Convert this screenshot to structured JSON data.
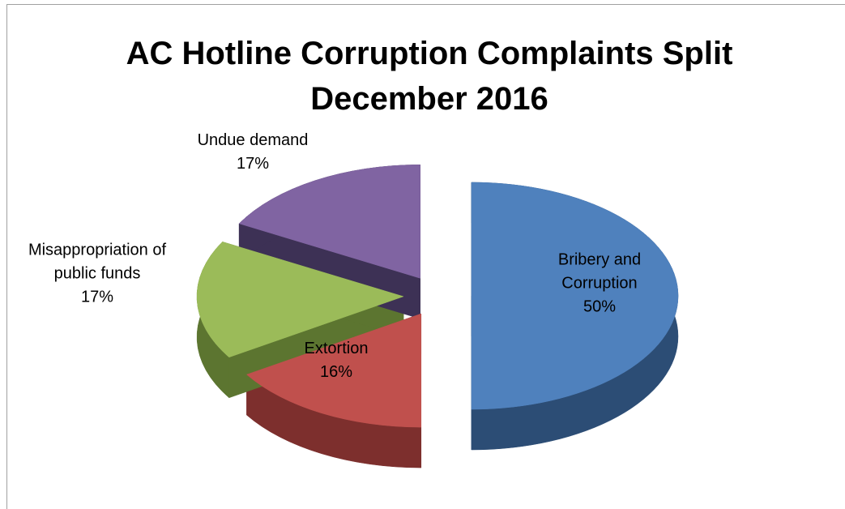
{
  "chart_data": {
    "type": "pie",
    "title": "AC Hotline Corruption Complaints Split December 2016",
    "categories": [
      "Bribery and Corruption",
      "Extortion",
      "Misappropriation of public funds",
      "Undue demand"
    ],
    "values": [
      50,
      16,
      17,
      17
    ],
    "value_labels": [
      "50%",
      "16%",
      "17%",
      "17%"
    ],
    "colors": [
      "#4f81bd",
      "#c0504d",
      "#9bbb59",
      "#8064a2"
    ],
    "side_colors": [
      "#2c4d75",
      "#7d2f2d",
      "#5c7530",
      "#3d3155"
    ],
    "exploded": true,
    "three_d": true
  }
}
